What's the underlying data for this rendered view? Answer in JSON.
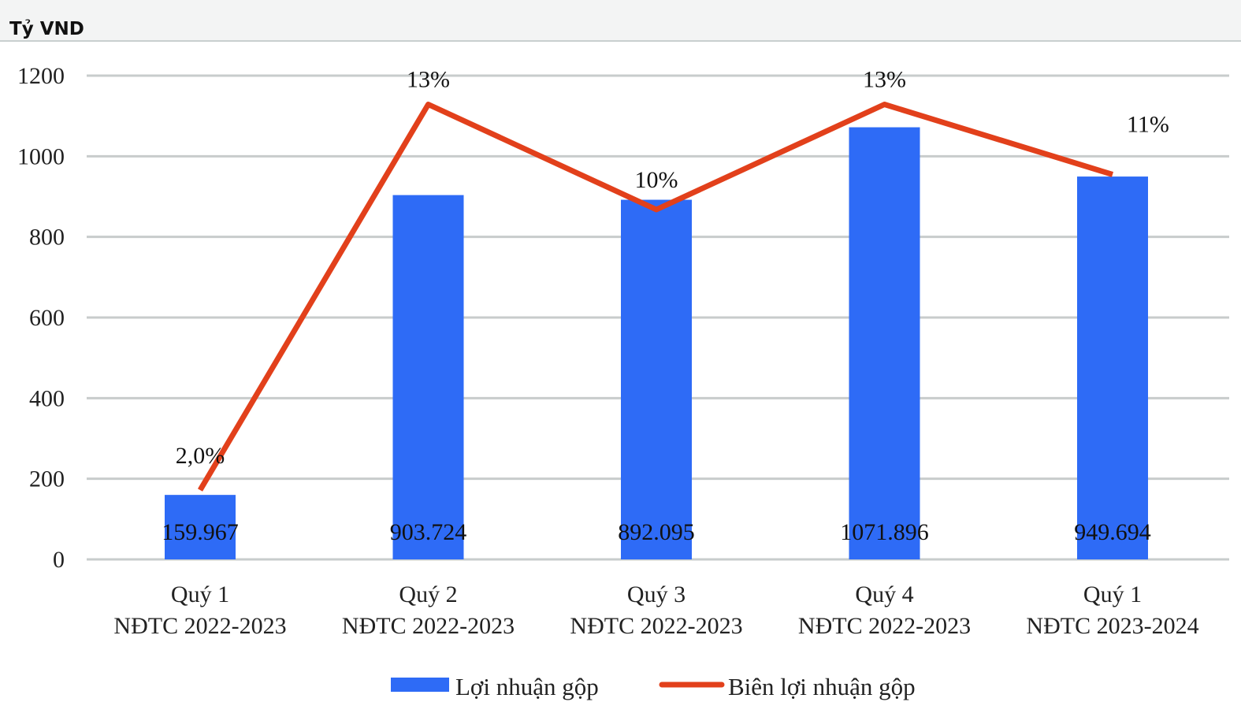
{
  "chart_data": {
    "type": "bar",
    "unit_label": "Tỷ VND",
    "categories": [
      [
        "Quý 1",
        "NĐTC 2022-2023"
      ],
      [
        "Quý 2",
        "NĐTC 2022-2023"
      ],
      [
        "Quý 3",
        "NĐTC 2022-2023"
      ],
      [
        "Quý 4",
        "NĐTC 2022-2023"
      ],
      [
        "Quý 1",
        "NĐTC 2023-2024"
      ]
    ],
    "series": [
      {
        "name": "Lợi nhuận gộp",
        "type": "bar",
        "color": "#2e6bf6",
        "values": [
          159.967,
          903.724,
          892.095,
          1071.896,
          949.694
        ],
        "labels": [
          "159.967",
          "903.724",
          "892.095",
          "1071.896",
          "949.694"
        ]
      },
      {
        "name": "Biên lợi nhuận gộp",
        "type": "line",
        "color": "#e2401b",
        "values": [
          2.0,
          13,
          10,
          13,
          11
        ],
        "labels": [
          "2,0%",
          "13%",
          "10%",
          "13%",
          "11%"
        ]
      }
    ],
    "yticks": [
      "0",
      "200",
      "400",
      "600",
      "800",
      "1000",
      "1200"
    ],
    "ylim": [
      0,
      1200
    ],
    "grid": true,
    "legend": "bottom"
  }
}
